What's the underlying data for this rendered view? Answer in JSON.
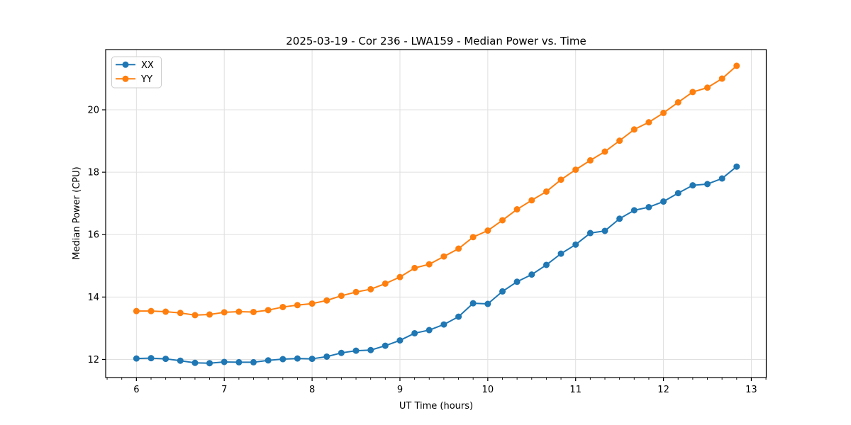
{
  "chart_data": {
    "type": "line",
    "title": "2025-03-19 - Cor 236 - LWA159 - Median Power vs. Time",
    "xlabel": "UT Time (hours)",
    "ylabel": "Median Power (CPU)",
    "x": [
      6.0,
      6.167,
      6.333,
      6.5,
      6.667,
      6.833,
      7.0,
      7.167,
      7.333,
      7.5,
      7.667,
      7.833,
      8.0,
      8.167,
      8.333,
      8.5,
      8.667,
      8.833,
      9.0,
      9.167,
      9.333,
      9.5,
      9.667,
      9.833,
      10.0,
      10.167,
      10.333,
      10.5,
      10.667,
      10.833,
      11.0,
      11.167,
      11.333,
      11.5,
      11.667,
      11.833,
      12.0,
      12.167,
      12.333,
      12.5,
      12.667,
      12.833
    ],
    "series": [
      {
        "name": "XX",
        "color": "#1f77b4",
        "values": [
          12.03,
          12.04,
          12.02,
          11.96,
          11.89,
          11.88,
          11.92,
          11.91,
          11.91,
          11.97,
          12.01,
          12.03,
          12.02,
          12.09,
          12.21,
          12.28,
          12.3,
          12.44,
          12.61,
          12.84,
          12.94,
          13.12,
          13.37,
          13.8,
          13.78,
          14.18,
          14.49,
          14.72,
          15.03,
          15.39,
          15.68,
          16.05,
          16.12,
          16.51,
          16.78,
          16.88,
          17.06,
          17.33,
          17.58,
          17.62,
          17.8,
          18.18
        ]
      },
      {
        "name": "YY",
        "color": "#ff7f0e",
        "values": [
          13.55,
          13.55,
          13.53,
          13.49,
          13.42,
          13.44,
          13.51,
          13.53,
          13.52,
          13.58,
          13.68,
          13.74,
          13.79,
          13.89,
          14.04,
          14.16,
          14.25,
          14.43,
          14.64,
          14.93,
          15.05,
          15.3,
          15.55,
          15.92,
          16.13,
          16.46,
          16.81,
          17.1,
          17.38,
          17.76,
          18.08,
          18.38,
          18.66,
          19.01,
          19.37,
          19.6,
          19.9,
          20.24,
          20.57,
          20.71,
          21.0,
          21.41
        ]
      }
    ],
    "xlim": [
      5.65,
      13.17
    ],
    "ylim": [
      11.42,
      21.93
    ],
    "xticks": [
      6,
      7,
      8,
      9,
      10,
      11,
      12,
      13
    ],
    "yticks": [
      12,
      14,
      16,
      18,
      20
    ],
    "x_minor_divisions": 6,
    "grid": true,
    "grid_color": "#e0e0e0",
    "axis_color": "#000000",
    "background": "#ffffff",
    "legend": {
      "position": "upper left",
      "entries": [
        "XX",
        "YY"
      ]
    },
    "marker": "o"
  }
}
